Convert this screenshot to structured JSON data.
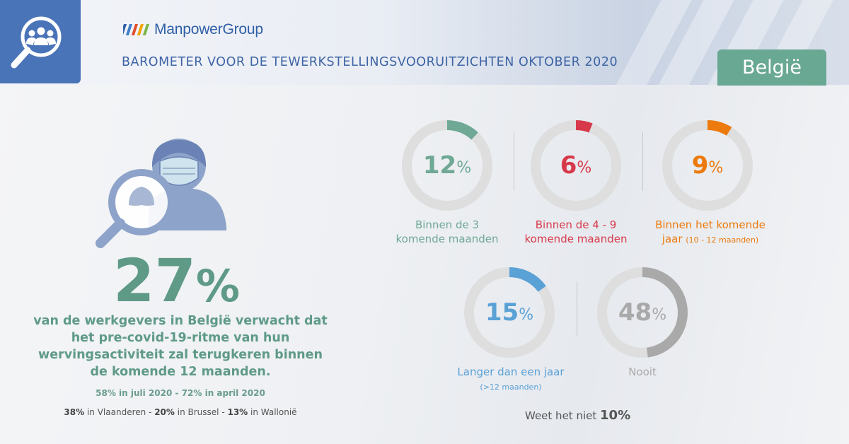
{
  "header": {
    "brand": "ManpowerGroup",
    "title": "BAROMETER VOOR DE TEWERKSTELLINGSVOORUITZICHTEN OKTOBER 2020",
    "country": "België",
    "brand_color": "#2f5fa7",
    "tile_color": "#4a74b8",
    "badge_color": "#69a893"
  },
  "headline": {
    "value": "27",
    "unit": "%",
    "text": "van de werkgevers in België verwacht dat het pre-covid-19-ritme van hun wervingsactiviteit zal terugkeren binnen de komende 12 maanden.",
    "history": "58% in juli 2020 - 72% in april 2020",
    "regions": [
      {
        "value": "38%",
        "label": " in Vlaanderen - "
      },
      {
        "value": "20%",
        "label": " in Brussel - "
      },
      {
        "value": "13%",
        "label": " in Wallonië"
      }
    ],
    "color": "#5f9a87"
  },
  "chart_data": {
    "type": "pie",
    "title": "",
    "series": [
      {
        "name": "Binnen de 3 komende maanden",
        "label_lines": [
          "Binnen de 3",
          "komende maanden"
        ],
        "value": 12,
        "color": "#6fa894"
      },
      {
        "name": "Binnen de 4 - 9 komende maanden",
        "label_lines": [
          "Binnen de 4 - 9",
          "komende maanden"
        ],
        "value": 6,
        "color": "#d7394a"
      },
      {
        "name": "Binnen het komende jaar (10 - 12 maanden)",
        "label_lines": [
          "Binnen het komende",
          "jaar"
        ],
        "label_small": "(10 - 12 maanden)",
        "value": 9,
        "color": "#ec7a0c"
      },
      {
        "name": "Langer dan een jaar (>12 maanden)",
        "label_lines": [
          "Langer dan een jaar"
        ],
        "label_small": "(>12 maanden)",
        "value": 15,
        "color": "#5aa1d6"
      },
      {
        "name": "Nooit",
        "label_lines": [
          "Nooit"
        ],
        "value": 48,
        "color": "#a9a9a9"
      }
    ],
    "unit": "%",
    "unknown": {
      "label": "Weet het niet",
      "value": "10%"
    }
  }
}
